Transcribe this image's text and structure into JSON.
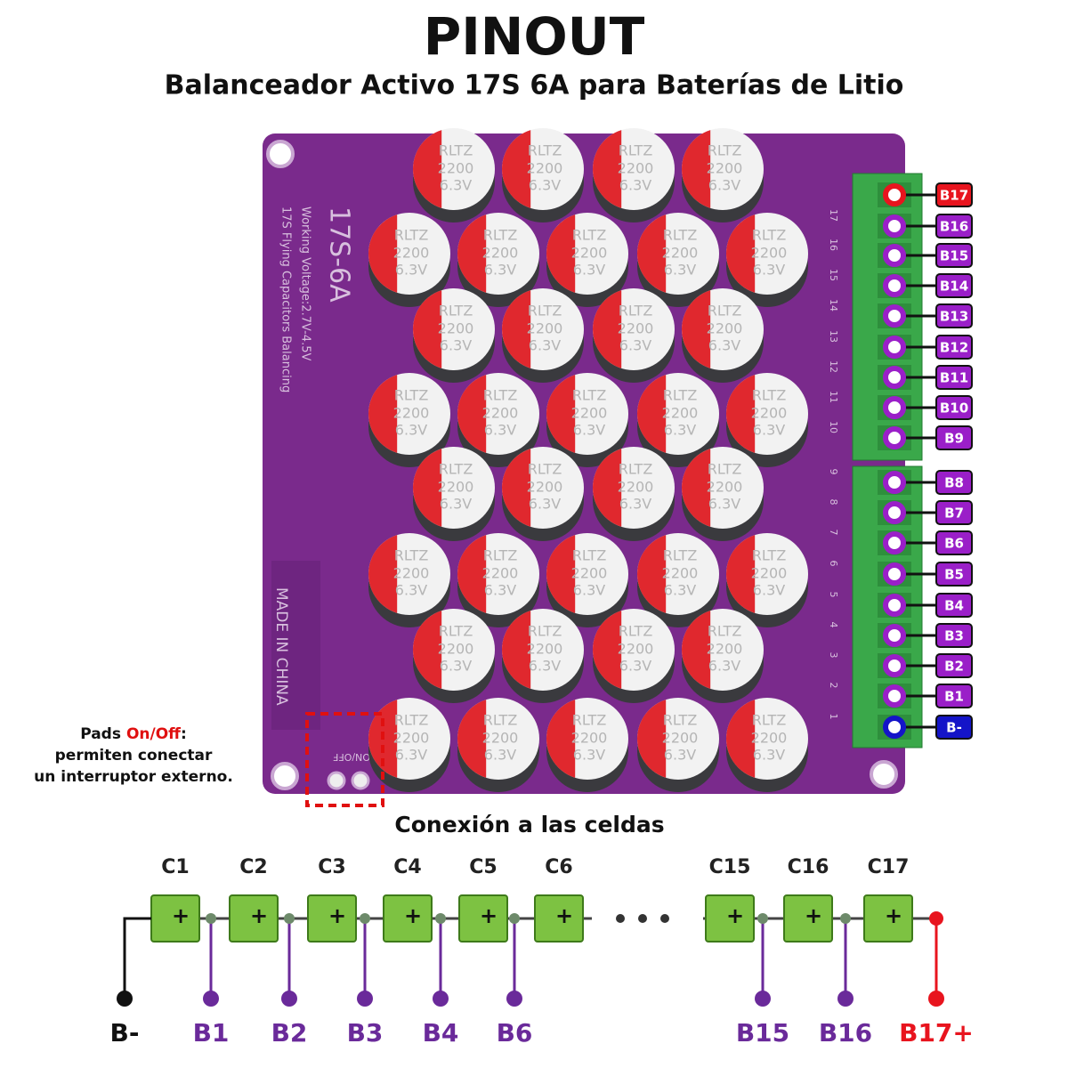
{
  "header": {
    "title": "PINOUT",
    "subtitle": "Balanceador Activo 17S 6A para Baterías de Litio"
  },
  "board": {
    "model": "17S-6A",
    "voltage": "Working Voltage:2.7V-4.5V",
    "description": "17S Flying Capacitors Balancing",
    "origin": "MADE IN CHINA",
    "switch_pads": "ON/OFF",
    "capacitor": {
      "brand": "RLTZ",
      "capacitance": "2200",
      "voltage": "6.3V"
    },
    "connector_silk": [
      "17",
      "16",
      "15",
      "14",
      "13",
      "12",
      "11",
      "10",
      "9",
      "8",
      "7",
      "6",
      "5",
      "4",
      "3",
      "2",
      "1"
    ]
  },
  "pins": [
    {
      "label": "B17",
      "color": "#e8141e"
    },
    {
      "label": "B16",
      "color": "#9a1fc8"
    },
    {
      "label": "B15",
      "color": "#9a1fc8"
    },
    {
      "label": "B14",
      "color": "#9a1fc8"
    },
    {
      "label": "B13",
      "color": "#9a1fc8"
    },
    {
      "label": "B12",
      "color": "#9a1fc8"
    },
    {
      "label": "B11",
      "color": "#9a1fc8"
    },
    {
      "label": "B10",
      "color": "#9a1fc8"
    },
    {
      "label": "B9",
      "color": "#9a1fc8"
    },
    {
      "label": "B8",
      "color": "#9a1fc8"
    },
    {
      "label": "B7",
      "color": "#9a1fc8"
    },
    {
      "label": "B6",
      "color": "#9a1fc8"
    },
    {
      "label": "B5",
      "color": "#9a1fc8"
    },
    {
      "label": "B4",
      "color": "#9a1fc8"
    },
    {
      "label": "B3",
      "color": "#9a1fc8"
    },
    {
      "label": "B2",
      "color": "#9a1fc8"
    },
    {
      "label": "B1",
      "color": "#9a1fc8"
    },
    {
      "label": "B-",
      "color": "#1414c8"
    }
  ],
  "note": {
    "pads": "Pads",
    "switch": "On/Off",
    "colon": ":",
    "line2": "permiten conectar",
    "line3": "un interruptor externo."
  },
  "cells": {
    "title": "Conexión a las celdas",
    "plus": "+",
    "labels": [
      "C1",
      "C2",
      "C3",
      "C4",
      "C5",
      "C6",
      "C15",
      "C16",
      "C17"
    ],
    "taps": [
      {
        "label": "B-",
        "color": "#111111"
      },
      {
        "label": "B1",
        "color": "#6a2a9a"
      },
      {
        "label": "B2",
        "color": "#6a2a9a"
      },
      {
        "label": "B3",
        "color": "#6a2a9a"
      },
      {
        "label": "B4",
        "color": "#6a2a9a"
      },
      {
        "label": "B6",
        "color": "#6a2a9a"
      },
      {
        "label": "B15",
        "color": "#6a2a9a"
      },
      {
        "label": "B16",
        "color": "#6a2a9a"
      },
      {
        "label": "B17+",
        "color": "#e8141e"
      }
    ]
  }
}
